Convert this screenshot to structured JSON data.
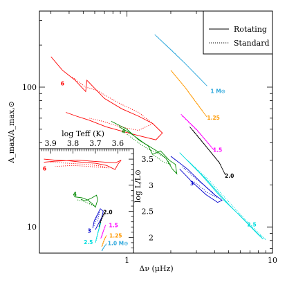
{
  "chart_data": {
    "type": "line",
    "main": {
      "xlabel": "Δν (μHz)",
      "ylabel": "A_max/A_max,⊙",
      "xscale": "log",
      "yscale": "log",
      "xlim": [
        0.25,
        10
      ],
      "ylim": [
        6.5,
        350
      ],
      "xticks": [
        {
          "v": 1,
          "t": "1"
        },
        {
          "v": 10,
          "t": "10"
        }
      ],
      "yticks": [
        {
          "v": 10,
          "t": "10"
        },
        {
          "v": 100,
          "t": "100"
        }
      ],
      "legend": {
        "position": "top-right",
        "entries": [
          {
            "label": "Rotating",
            "style": "solid"
          },
          {
            "label": "Standard",
            "style": "dotted"
          }
        ]
      },
      "series": [
        {
          "mass": "6",
          "label": "6",
          "color": "#ff0000",
          "rotating": [
            [
              0.3,
              165
            ],
            [
              0.36,
              132
            ],
            [
              0.44,
              112
            ],
            [
              0.52,
              93
            ],
            [
              0.53,
              112
            ],
            [
              0.7,
              83
            ],
            [
              0.92,
              70
            ],
            [
              1.2,
              62
            ],
            [
              1.5,
              55
            ],
            [
              1.75,
              47
            ],
            [
              1.58,
              42
            ],
            [
              1.2,
              45
            ],
            [
              0.95,
              48
            ],
            [
              0.72,
              52
            ],
            [
              0.55,
              58
            ],
            [
              0.45,
              62
            ],
            [
              0.38,
              66
            ]
          ],
          "standard": [
            [
              0.42,
              118
            ],
            [
              0.52,
              100
            ],
            [
              0.62,
              95
            ],
            [
              0.7,
              88
            ],
            [
              0.9,
              76
            ],
            [
              1.2,
              66
            ],
            [
              1.5,
              55
            ],
            [
              1.2,
              49
            ],
            [
              0.9,
              52
            ],
            [
              0.68,
              57
            ],
            [
              0.55,
              60
            ]
          ],
          "label_at": [
            0.35,
            103
          ]
        },
        {
          "mass": "4",
          "label": "4",
          "color": "#008800",
          "rotating": [
            [
              0.78,
              57
            ],
            [
              1.0,
              50
            ],
            [
              1.2,
              42
            ],
            [
              1.4,
              38
            ],
            [
              1.5,
              33
            ],
            [
              1.7,
              35
            ],
            [
              1.95,
              30
            ],
            [
              2.15,
              28
            ],
            [
              2.2,
              24
            ],
            [
              2.05,
              26
            ],
            [
              1.85,
              31
            ],
            [
              1.6,
              35
            ],
            [
              1.3,
              40
            ],
            [
              1.05,
              47
            ],
            [
              0.88,
              52
            ]
          ],
          "standard": [
            [
              1.0,
              46
            ],
            [
              1.2,
              40
            ],
            [
              1.4,
              36
            ],
            [
              1.6,
              34
            ],
            [
              1.85,
              31
            ],
            [
              2.0,
              28
            ],
            [
              1.8,
              29
            ],
            [
              1.5,
              33
            ]
          ],
          "label_at": [
            0.92,
            47
          ]
        },
        {
          "mass": "3",
          "label": "3",
          "color": "#0000cc",
          "rotating": [
            [
              2.0,
              32
            ],
            [
              2.6,
              26
            ],
            [
              3.2,
              21
            ],
            [
              4.0,
              17
            ],
            [
              4.5,
              15.5
            ],
            [
              4.2,
              15
            ],
            [
              3.5,
              17
            ],
            [
              2.8,
              21
            ],
            [
              2.3,
              26
            ]
          ],
          "standard": [
            [
              2.4,
              27
            ],
            [
              3.0,
              22
            ],
            [
              3.8,
              18
            ],
            [
              4.2,
              16.2
            ],
            [
              3.6,
              17.5
            ],
            [
              2.9,
              21
            ]
          ],
          "label_at": [
            2.72,
            19.8
          ]
        },
        {
          "mass": "2.5",
          "label": "2.5",
          "color": "#00dddd",
          "rotating": [
            [
              2.3,
              34
            ],
            [
              3.2,
              24
            ],
            [
              4.5,
              16
            ],
            [
              6.0,
              12
            ],
            [
              7.5,
              9.5
            ],
            [
              8.6,
              8.2
            ],
            [
              8.0,
              8.8
            ],
            [
              6.5,
              11
            ],
            [
              5.0,
              14.5
            ],
            [
              3.5,
              22
            ],
            [
              2.6,
              30
            ]
          ],
          "standard": [
            [
              2.6,
              30
            ],
            [
              3.6,
              22
            ],
            [
              5.2,
              14.5
            ],
            [
              7.0,
              10.4
            ],
            [
              9.0,
              8.1
            ],
            [
              7.6,
              9.3
            ],
            [
              5.8,
              12.6
            ]
          ],
          "label_at": [
            6.7,
            10.1
          ]
        },
        {
          "mass": "2.0",
          "label": "2.0",
          "color": "#000000",
          "rotating": [
            [
              2.7,
              52
            ],
            [
              3.4,
              39
            ],
            [
              4.3,
              29
            ],
            [
              4.75,
              23.5
            ]
          ],
          "standard": [
            [
              2.85,
              49
            ],
            [
              3.55,
              37
            ],
            [
              4.45,
              27.5
            ]
          ],
          "label_at": [
            4.7,
            22.5
          ]
        },
        {
          "mass": "1.5",
          "label": "1.5",
          "color": "#ff00ff",
          "rotating": [
            [
              2.35,
              64
            ],
            [
              3.0,
              50
            ],
            [
              3.6,
              40
            ],
            [
              3.95,
              35.5
            ]
          ],
          "standard": [
            [
              2.4,
              62
            ],
            [
              3.05,
              48.5
            ],
            [
              3.9,
              36
            ]
          ],
          "label_at": [
            3.9,
            34.5
          ]
        },
        {
          "mass": "1.25",
          "label": "1.25",
          "color": "#ff9900",
          "rotating": [
            [
              2.0,
              132
            ],
            [
              2.5,
              100
            ],
            [
              3.0,
              77
            ],
            [
              3.55,
              61
            ]
          ],
          "standard": [
            [
              2.05,
              128
            ],
            [
              2.6,
              95
            ],
            [
              3.3,
              68
            ]
          ],
          "label_at": [
            3.55,
            58.5
          ]
        },
        {
          "mass": "1",
          "label": "1 M⊙",
          "color": "#33aadd",
          "rotating": [
            [
              1.55,
              238
            ],
            [
              2.0,
              185
            ],
            [
              2.5,
              148
            ],
            [
              3.1,
              118
            ],
            [
              3.55,
              102
            ]
          ],
          "standard": [
            [
              1.6,
              231
            ],
            [
              2.1,
              178
            ],
            [
              2.7,
              137
            ]
          ],
          "label_at": [
            3.75,
            91
          ]
        }
      ]
    },
    "inset": {
      "xlabel": "log Teff (K)",
      "ylabel": "log L/L⊙",
      "xlim": [
        3.95,
        3.53
      ],
      "ylim": [
        1.7,
        3.7
      ],
      "xticks": [
        {
          "v": 3.9,
          "t": "3.9"
        },
        {
          "v": 3.8,
          "t": "3.8"
        },
        {
          "v": 3.7,
          "t": "3.7"
        },
        {
          "v": 3.6,
          "t": "3.6"
        }
      ],
      "yticks": [
        {
          "v": 2,
          "t": "2"
        },
        {
          "v": 2.5,
          "t": "2.5"
        },
        {
          "v": 3,
          "t": "3"
        },
        {
          "v": 3.5,
          "t": "3.5"
        }
      ],
      "series": [
        {
          "mass": "6",
          "label": "6",
          "color": "#ff0000",
          "rotating": [
            [
              3.93,
              3.5
            ],
            [
              3.88,
              3.48
            ],
            [
              3.82,
              3.47
            ],
            [
              3.76,
              3.44
            ],
            [
              3.7,
              3.42
            ],
            [
              3.65,
              3.38
            ],
            [
              3.612,
              3.3
            ],
            [
              3.6,
              3.4
            ],
            [
              3.585,
              3.48
            ],
            [
              3.61,
              3.43
            ],
            [
              3.68,
              3.45
            ],
            [
              3.78,
              3.48
            ],
            [
              3.88,
              3.46
            ],
            [
              3.93,
              3.44
            ]
          ],
          "standard": [
            [
              3.9,
              3.44
            ],
            [
              3.82,
              3.42
            ],
            [
              3.74,
              3.4
            ],
            [
              3.68,
              3.37
            ],
            [
              3.64,
              3.33
            ],
            [
              3.7,
              3.35
            ],
            [
              3.8,
              3.38
            ],
            [
              3.88,
              3.36
            ]
          ],
          "label_at": [
            3.935,
            3.28
          ]
        },
        {
          "mass": "4",
          "label": "4",
          "color": "#008800",
          "rotating": [
            [
              3.795,
              2.78
            ],
            [
              3.76,
              2.76
            ],
            [
              3.735,
              2.72
            ],
            [
              3.715,
              2.65
            ],
            [
              3.7,
              2.58
            ],
            [
              3.69,
              2.72
            ],
            [
              3.695,
              2.81
            ],
            [
              3.715,
              2.76
            ],
            [
              3.745,
              2.7
            ],
            [
              3.765,
              2.73
            ]
          ],
          "standard": [
            [
              3.78,
              2.72
            ],
            [
              3.75,
              2.69
            ],
            [
              3.72,
              2.63
            ],
            [
              3.705,
              2.6
            ],
            [
              3.73,
              2.67
            ]
          ],
          "label_at": [
            3.8,
            2.79
          ]
        },
        {
          "mass": "3",
          "label": "3",
          "color": "#0000cc",
          "rotating": [
            [
              3.712,
              2.18
            ],
            [
              3.705,
              2.32
            ],
            [
              3.69,
              2.45
            ],
            [
              3.678,
              2.55
            ],
            [
              3.665,
              2.5
            ],
            [
              3.672,
              2.38
            ],
            [
              3.688,
              2.25
            ],
            [
              3.7,
              2.15
            ]
          ],
          "standard": [
            [
              3.706,
              2.22
            ],
            [
              3.696,
              2.36
            ],
            [
              3.682,
              2.48
            ],
            [
              3.69,
              2.3
            ]
          ],
          "label_at": [
            3.735,
            2.09
          ]
        },
        {
          "mass": "2.0",
          "label": "2.0",
          "color": "#000000",
          "rotating": [
            [
              3.684,
              2.2
            ],
            [
              3.676,
              2.32
            ],
            [
              3.664,
              2.44
            ],
            [
              3.654,
              2.5
            ]
          ],
          "standard": [
            [
              3.68,
              2.24
            ],
            [
              3.668,
              2.38
            ],
            [
              3.658,
              2.46
            ]
          ],
          "label_at": [
            3.665,
            2.45
          ]
        },
        {
          "mass": "1.5",
          "label": "1.5",
          "color": "#ff00ff",
          "rotating": [
            [
              3.676,
              1.98
            ],
            [
              3.668,
              2.08
            ],
            [
              3.66,
              2.18
            ],
            [
              3.654,
              2.24
            ]
          ],
          "standard": [
            [
              3.672,
              2.0
            ],
            [
              3.664,
              2.12
            ],
            [
              3.656,
              2.21
            ]
          ],
          "label_at": [
            3.64,
            2.2
          ]
        },
        {
          "mass": "2.5",
          "label": "2.5",
          "color": "#00dddd",
          "rotating": [
            [
              3.7,
              1.9
            ],
            [
              3.692,
              2.04
            ],
            [
              3.684,
              2.16
            ],
            [
              3.676,
              2.28
            ],
            [
              3.682,
              2.2
            ],
            [
              3.69,
              2.08
            ]
          ],
          "standard": [
            [
              3.696,
              1.94
            ],
            [
              3.688,
              2.08
            ],
            [
              3.68,
              2.22
            ]
          ],
          "label_at": [
            3.752,
            1.87
          ]
        },
        {
          "mass": "1.25",
          "label": "1.25",
          "color": "#ff9900",
          "rotating": [
            [
              3.672,
              1.82
            ],
            [
              3.664,
              1.92
            ],
            [
              3.656,
              2.0
            ],
            [
              3.65,
              2.04
            ]
          ],
          "standard": [
            [
              3.668,
              1.84
            ],
            [
              3.66,
              1.95
            ],
            [
              3.652,
              2.02
            ]
          ],
          "label_at": [
            3.638,
            2.0
          ]
        },
        {
          "mass": "1",
          "label": "1.0 M⊙",
          "color": "#33aadd",
          "rotating": [
            [
              3.672,
              1.74
            ],
            [
              3.664,
              1.8
            ],
            [
              3.656,
              1.85
            ],
            [
              3.65,
              1.88
            ]
          ],
          "standard": [
            [
              3.668,
              1.75
            ],
            [
              3.66,
              1.82
            ],
            [
              3.652,
              1.86
            ]
          ],
          "label_at": [
            3.645,
            1.85
          ]
        }
      ]
    }
  }
}
